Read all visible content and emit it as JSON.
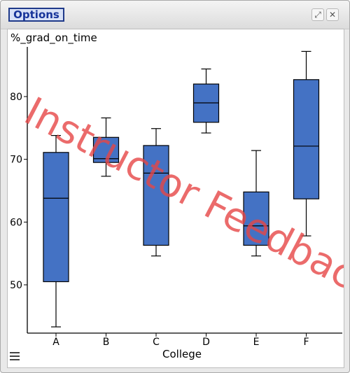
{
  "toolbar": {
    "options_label": "Options",
    "maximize_icon": "expand-icon",
    "close_icon": "close-icon"
  },
  "watermark": "Instructor Feedback",
  "menu_icon": "hamburger-menu-icon",
  "chart_data": {
    "type": "boxplot",
    "ylabel": "%_grad_on_time",
    "xlabel": "College",
    "categories": [
      "A",
      "B",
      "C",
      "D",
      "E",
      "F"
    ],
    "ylim": [
      42,
      88
    ],
    "yticks": [
      50,
      60,
      70,
      80
    ],
    "boxes": [
      {
        "category": "A",
        "min": 43.3,
        "q1": 50.5,
        "median": 63.8,
        "q3": 71.1,
        "max": 73.8
      },
      {
        "category": "B",
        "min": 67.3,
        "q1": 69.5,
        "median": 70.1,
        "q3": 73.5,
        "max": 76.6
      },
      {
        "category": "C",
        "min": 54.6,
        "q1": 56.3,
        "median": 67.8,
        "q3": 72.2,
        "max": 74.9
      },
      {
        "category": "D",
        "min": 74.2,
        "q1": 75.9,
        "median": 79.0,
        "q3": 82.0,
        "max": 84.4
      },
      {
        "category": "E",
        "min": 54.6,
        "q1": 56.3,
        "median": 59.4,
        "q3": 64.8,
        "max": 71.4
      },
      {
        "category": "F",
        "min": 57.8,
        "q1": 63.7,
        "median": 72.1,
        "q3": 82.7,
        "max": 87.2
      }
    ],
    "colors": {
      "box_fill": "#4472c4",
      "stroke": "#000000",
      "watermark": "#e64646"
    }
  }
}
